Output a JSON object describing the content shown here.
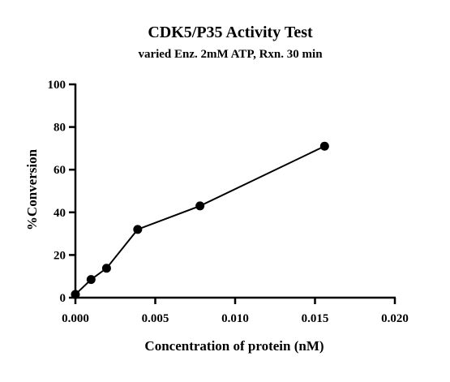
{
  "chart_data": {
    "type": "line",
    "title": "CDK5/P35 Activity Test",
    "subtitle": "varied Enz. 2mM ATP, Rxn. 30 min",
    "xlabel": "Concentration of protein (nM)",
    "ylabel": "%Conversion",
    "xlim": [
      0,
      0.02
    ],
    "ylim": [
      0,
      100
    ],
    "xticks": [
      "0.000",
      "0.005",
      "0.010",
      "0.015",
      "0.020"
    ],
    "xtick_values": [
      0,
      0.005,
      0.01,
      0.015,
      0.02
    ],
    "yticks": [
      "0",
      "20",
      "40",
      "60",
      "80",
      "100"
    ],
    "ytick_values": [
      0,
      20,
      40,
      60,
      80,
      100
    ],
    "grid": false,
    "series": [
      {
        "x": [
          0,
          0.00098,
          0.00195,
          0.0039,
          0.0078,
          0.0156
        ],
        "y": [
          1.5,
          8.5,
          13.8,
          32.0,
          43.0,
          71.0
        ],
        "color": "#000000",
        "marker": "circle"
      }
    ]
  }
}
